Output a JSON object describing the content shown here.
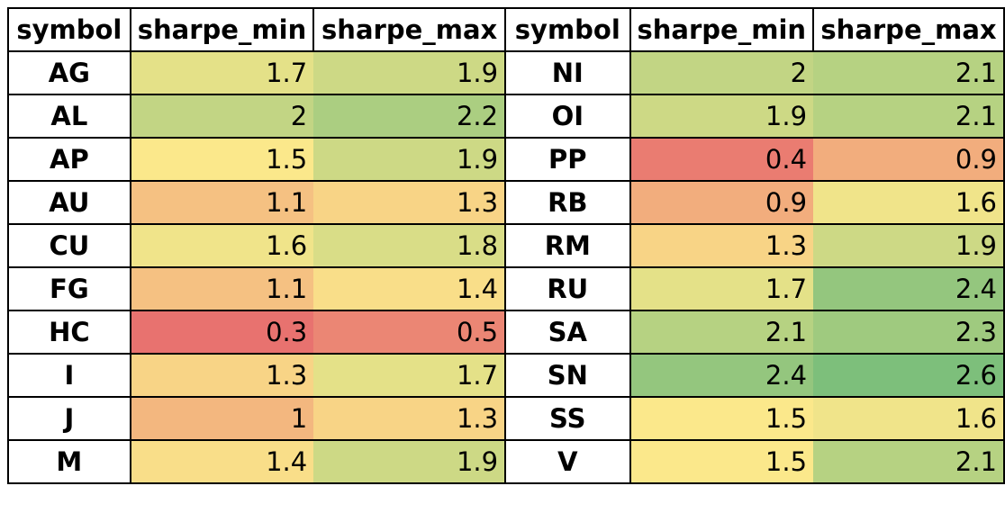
{
  "table": {
    "headers": [
      "symbol",
      "sharpe_min",
      "sharpe_max",
      "symbol",
      "sharpe_min",
      "sharpe_max"
    ],
    "rows": [
      {
        "sym1": "AG",
        "min1": "1.7",
        "max1": "1.9",
        "sym2": "NI",
        "min2": "2",
        "max2": "2.1"
      },
      {
        "sym1": "AL",
        "min1": "2",
        "max1": "2.2",
        "sym2": "OI",
        "min2": "1.9",
        "max2": "2.1"
      },
      {
        "sym1": "AP",
        "min1": "1.5",
        "max1": "1.9",
        "sym2": "PP",
        "min2": "0.4",
        "max2": "0.9"
      },
      {
        "sym1": "AU",
        "min1": "1.1",
        "max1": "1.3",
        "sym2": "RB",
        "min2": "0.9",
        "max2": "1.6"
      },
      {
        "sym1": "CU",
        "min1": "1.6",
        "max1": "1.8",
        "sym2": "RM",
        "min2": "1.3",
        "max2": "1.9"
      },
      {
        "sym1": "FG",
        "min1": "1.1",
        "max1": "1.4",
        "sym2": "RU",
        "min2": "1.7",
        "max2": "2.4"
      },
      {
        "sym1": "HC",
        "min1": "0.3",
        "max1": "0.5",
        "sym2": "SA",
        "min2": "2.1",
        "max2": "2.3"
      },
      {
        "sym1": "I",
        "min1": "1.3",
        "max1": "1.7",
        "sym2": "SN",
        "min2": "2.4",
        "max2": "2.6"
      },
      {
        "sym1": "J",
        "min1": "1",
        "max1": "1.3",
        "sym2": "SS",
        "min2": "1.5",
        "max2": "1.6"
      },
      {
        "sym1": "M",
        "min1": "1.4",
        "max1": "1.9",
        "sym2": "V",
        "min2": "1.5",
        "max2": "2.1"
      }
    ]
  },
  "color_scale": {
    "min_value": 0.3,
    "mid_value": 1.5,
    "max_value": 2.6,
    "low_color": "#e8726f",
    "mid_color": "#fbe88b",
    "high_color": "#7dbf7b"
  }
}
